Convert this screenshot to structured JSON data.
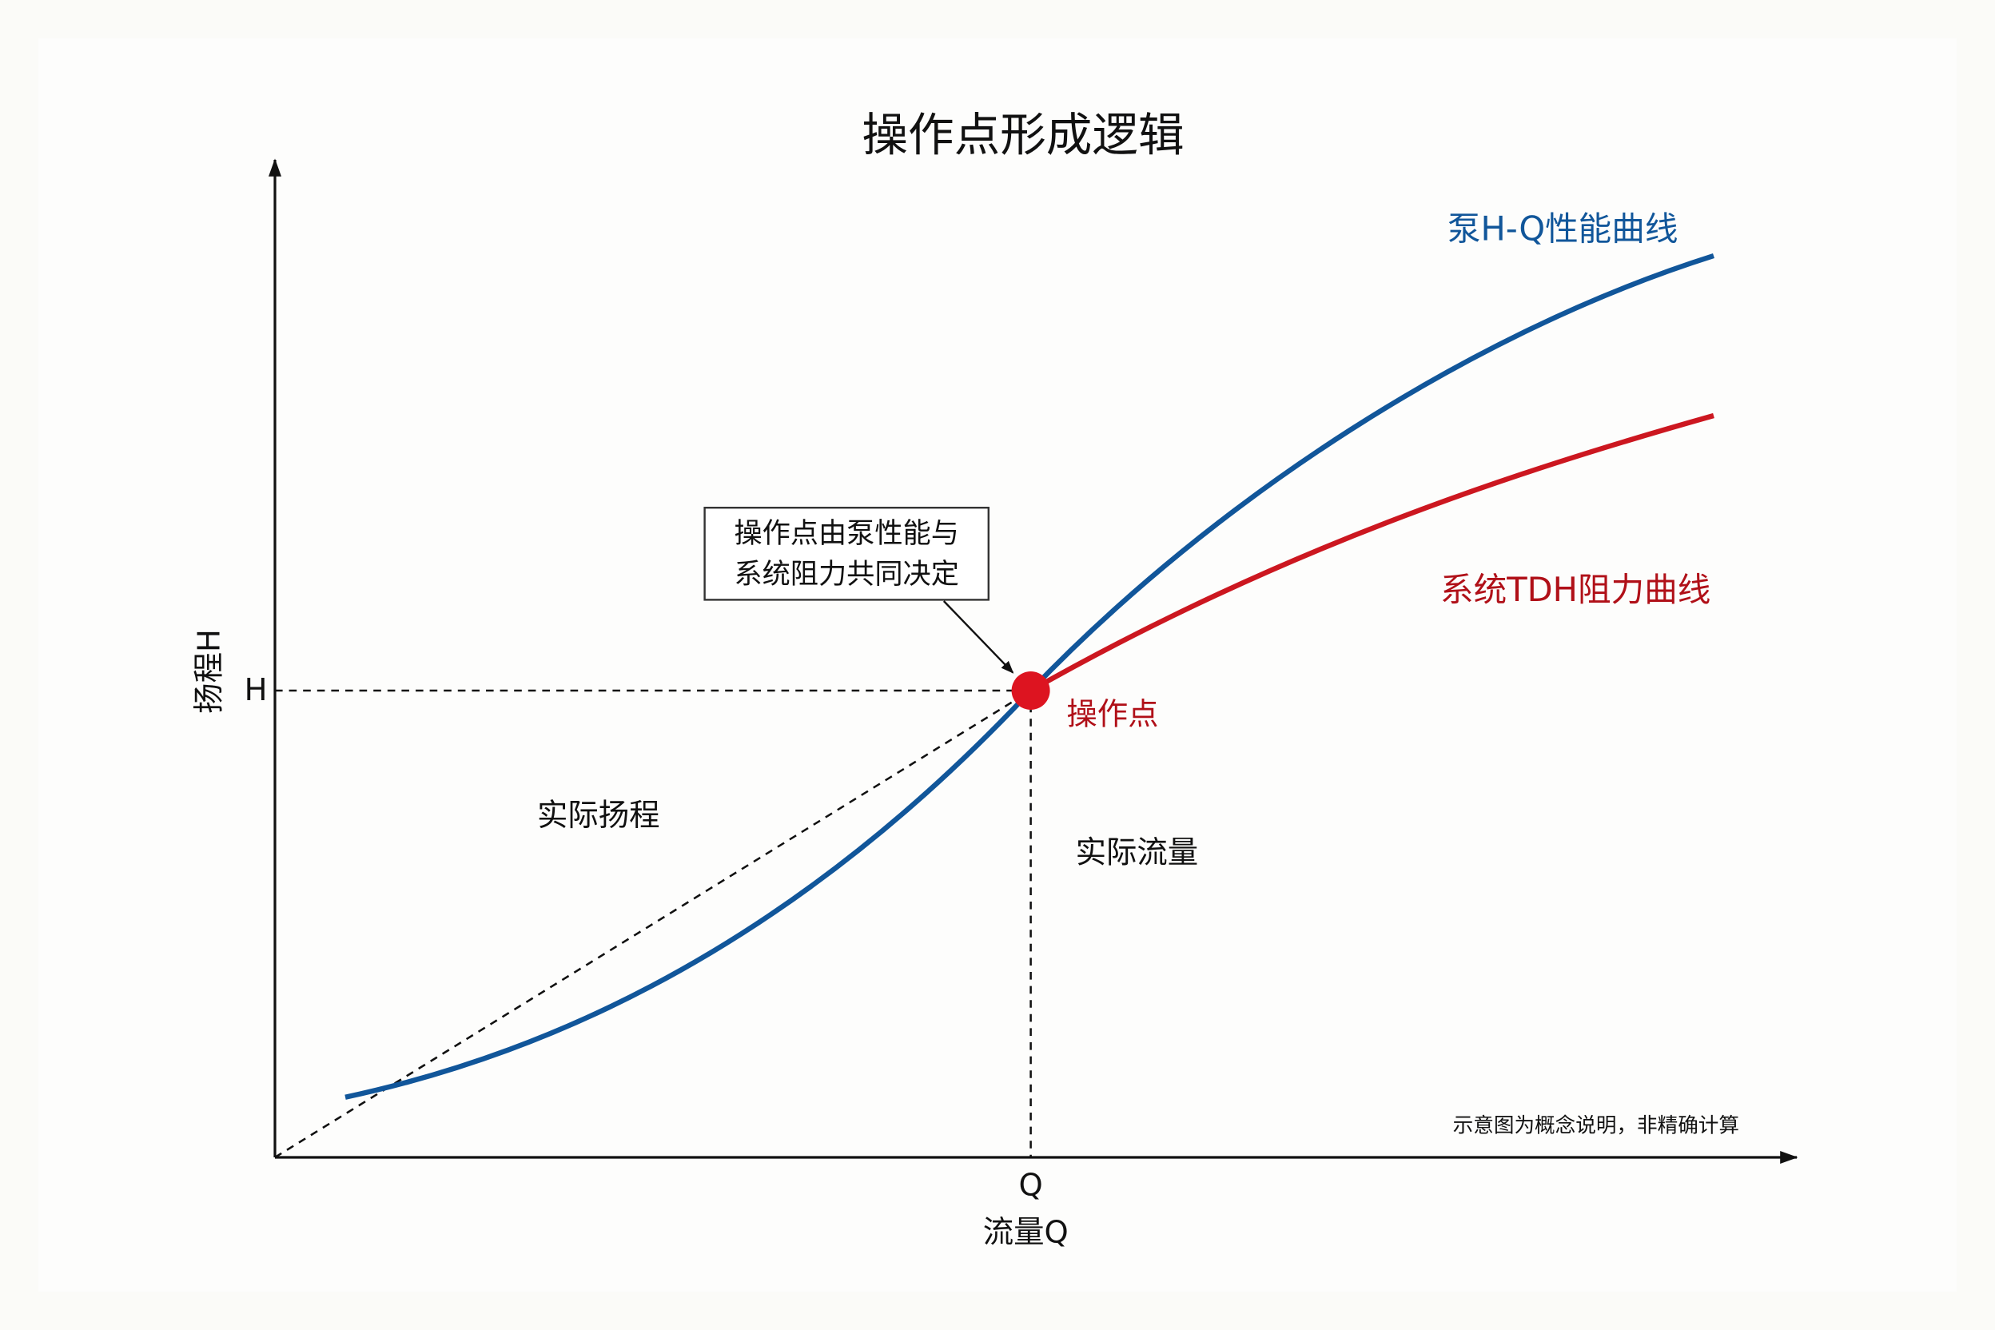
{
  "title": "操作点形成逻辑",
  "axes": {
    "y_label": "扬程H",
    "x_label": "流量Q",
    "y_tick": "H",
    "x_tick": "Q"
  },
  "curves": {
    "pump": "泵H-Q性能曲线",
    "system": "系统TDH阻力曲线"
  },
  "operating_point": {
    "label": "操作点",
    "callout": [
      "操作点由泵性能与",
      "系统阻力共同决定"
    ]
  },
  "regions": {
    "head": "实际扬程",
    "flow": "实际流量"
  },
  "note": "示意图为概念说明，非精确计算"
}
